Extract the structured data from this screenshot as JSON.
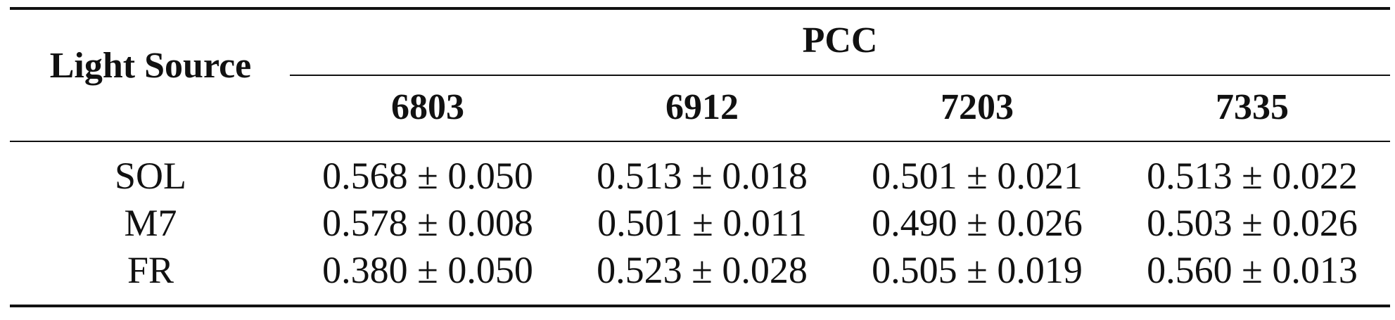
{
  "table": {
    "header": {
      "row_header": "Light Source",
      "group": "PCC",
      "columns": [
        "6803",
        "6912",
        "7203",
        "7335"
      ]
    },
    "rows": [
      [
        "SOL",
        "0.568 ± 0.050",
        "0.513 ± 0.018",
        "0.501 ± 0.021",
        "0.513 ± 0.022"
      ],
      [
        "M7",
        "0.578 ± 0.008",
        "0.501 ± 0.011",
        "0.490 ± 0.026",
        "0.503 ± 0.026"
      ],
      [
        "FR",
        "0.380 ± 0.050",
        "0.523 ± 0.028",
        "0.505 ± 0.019",
        "0.560 ± 0.013"
      ]
    ]
  }
}
